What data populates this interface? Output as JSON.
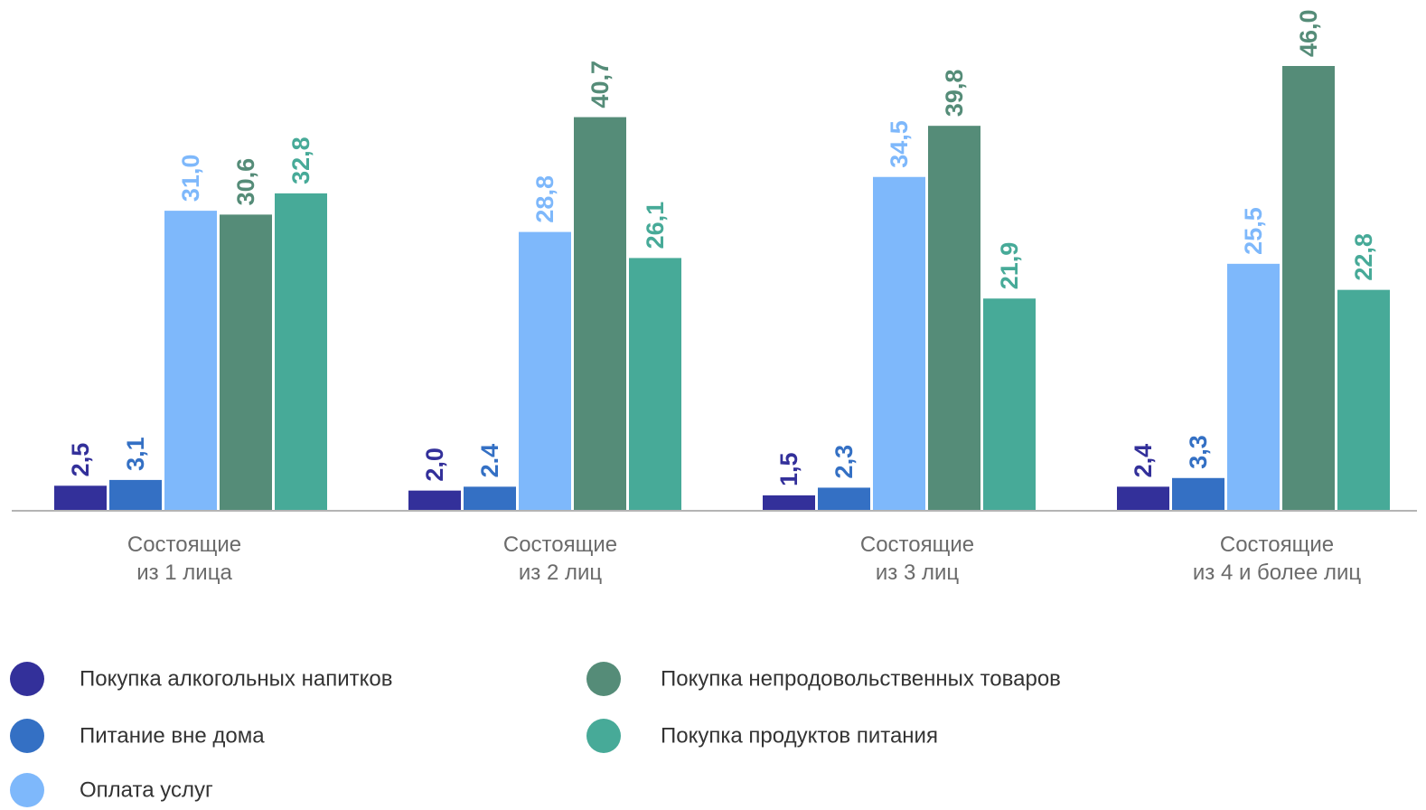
{
  "chart_data": {
    "type": "bar",
    "categories": [
      [
        "Состоящие",
        "из 1 лица"
      ],
      [
        "Состоящие",
        "из 2 лиц"
      ],
      [
        "Состоящие",
        "из 3 лиц"
      ],
      [
        "Состоящие",
        "из 4 и более лиц"
      ]
    ],
    "series": [
      {
        "name": "Покупка алкогольных напитков",
        "color": "#33309a",
        "values": [
          2.5,
          2.0,
          1.5,
          2.4
        ],
        "labels": [
          "2,5",
          "2,0",
          "1,5",
          "2,4"
        ]
      },
      {
        "name": "Питание вне дома",
        "color": "#3470c4",
        "values": [
          3.1,
          2.4,
          2.3,
          3.3
        ],
        "labels": [
          "3,1",
          "2.4",
          "2,3",
          "3,3"
        ]
      },
      {
        "name": "Оплата услуг",
        "color": "#7eb8fb",
        "values": [
          31.0,
          28.8,
          34.5,
          25.5
        ],
        "labels": [
          "31,0",
          "28,8",
          "34,5",
          "25,5"
        ]
      },
      {
        "name": "Покупка непродовольственных товаров",
        "color": "#558c78",
        "values": [
          30.6,
          40.7,
          39.8,
          46.0
        ],
        "labels": [
          "30,6",
          "40,7",
          "39,8",
          "46,0"
        ]
      },
      {
        "name": "Покупка продуктов питания",
        "color": "#47aa98",
        "values": [
          32.8,
          26.1,
          21.9,
          22.8
        ],
        "labels": [
          "32,8",
          "26,1",
          "21,9",
          "22,8"
        ]
      }
    ],
    "ylim": [
      0,
      46.0
    ],
    "grid": false,
    "legend_position": "bottom"
  }
}
